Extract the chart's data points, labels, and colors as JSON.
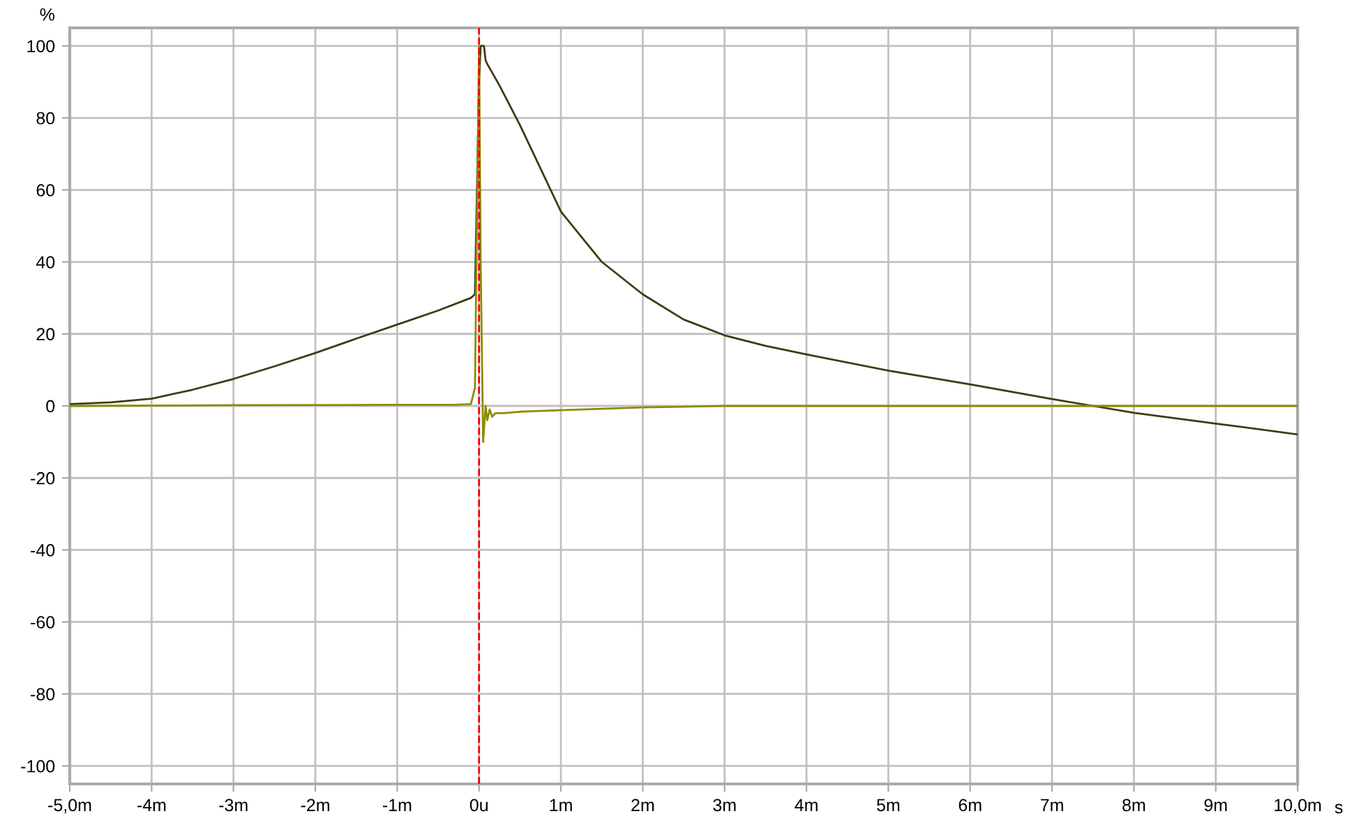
{
  "chart_data": {
    "type": "line",
    "xlabel": "s",
    "ylabel": "%",
    "series": [
      {
        "color": "#3c3c14",
        "x": [
          -5,
          -4.5,
          -4,
          -3.5,
          -3,
          -2.5,
          -2,
          -1.5,
          -1,
          -0.5,
          -0.1,
          -0.05,
          0,
          0.02,
          0.06,
          0.08,
          0.1,
          0.25,
          0.5,
          0.75,
          1,
          1.5,
          2,
          2.5,
          3,
          3.5,
          4,
          5,
          6,
          7,
          7.5,
          8,
          9,
          10
        ],
        "values": [
          0.5,
          1,
          2,
          4.5,
          7.5,
          11,
          14.7,
          18.7,
          22.6,
          26.5,
          30,
          31,
          90,
          100,
          100,
          96,
          95,
          89,
          78,
          66,
          54,
          40,
          31,
          24,
          19.6,
          16.7,
          14.3,
          9.8,
          6,
          1.9,
          0,
          -1.9,
          -4.9,
          -7.9
        ]
      },
      {
        "color": "#8c8c00",
        "x": [
          -5,
          -3,
          -1,
          -0.3,
          -0.1,
          -0.05,
          0,
          0.02,
          0.05,
          0.08,
          0.1,
          0.13,
          0.16,
          0.2,
          0.3,
          0.5,
          1,
          1.5,
          2,
          2.5,
          3,
          5,
          7,
          10
        ],
        "values": [
          0,
          0.2,
          0.3,
          0.3,
          0.5,
          5,
          100,
          40,
          -10,
          0,
          -4,
          -1,
          -3,
          -2,
          -2,
          -1.6,
          -1.2,
          -0.8,
          -0.4,
          -0.2,
          0,
          0,
          0,
          0
        ]
      }
    ],
    "xlim": [
      -5,
      10
    ],
    "ylim": [
      -105,
      105
    ],
    "xticks": [
      {
        "value": -5,
        "label": "-5,0m"
      },
      {
        "value": -4,
        "label": "-4m"
      },
      {
        "value": -3,
        "label": "-3m"
      },
      {
        "value": -2,
        "label": "-2m"
      },
      {
        "value": -1,
        "label": "-1m"
      },
      {
        "value": 0,
        "label": "0u"
      },
      {
        "value": 1,
        "label": "1m"
      },
      {
        "value": 2,
        "label": "2m"
      },
      {
        "value": 3,
        "label": "3m"
      },
      {
        "value": 4,
        "label": "4m"
      },
      {
        "value": 5,
        "label": "5m"
      },
      {
        "value": 6,
        "label": "6m"
      },
      {
        "value": 7,
        "label": "7m"
      },
      {
        "value": 8,
        "label": "8m"
      },
      {
        "value": 9,
        "label": "9m"
      },
      {
        "value": 10,
        "label": "10,0m"
      }
    ],
    "yticks": [
      -100,
      -80,
      -60,
      -40,
      -20,
      0,
      20,
      40,
      60,
      80,
      100
    ],
    "ref_lines": [
      {
        "axis": "x",
        "value": 0,
        "color": "#ff0000",
        "line_style": "dashed"
      }
    ],
    "grid": true,
    "legend": false,
    "marker": "none",
    "line_style": "solid"
  }
}
